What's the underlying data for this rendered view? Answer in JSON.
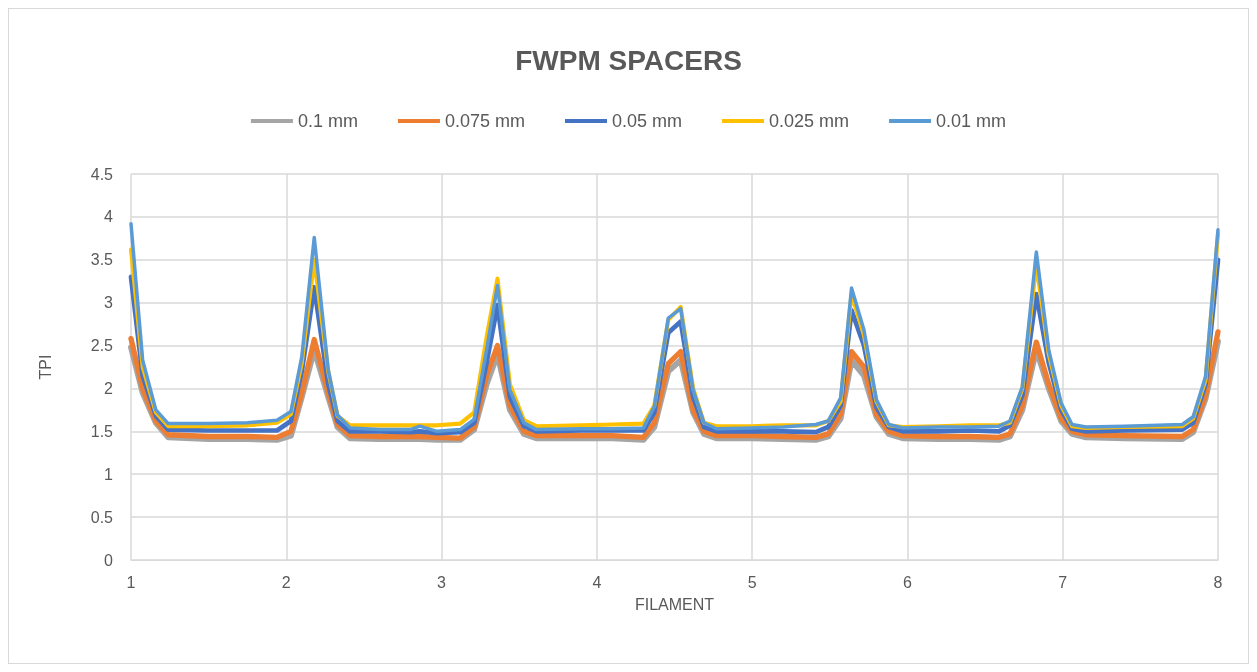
{
  "chart_data": {
    "type": "line",
    "title": "FWPM SPACERS",
    "xlabel": "FILAMENT",
    "ylabel": "TPI",
    "x": [
      1,
      1.075,
      1.16,
      1.24,
      1.5,
      1.75,
      1.94,
      2.03,
      2.1,
      2.18,
      2.27,
      2.33,
      2.41,
      2.6,
      2.8,
      2.86,
      2.97,
      3.12,
      3.21,
      3.29,
      3.36,
      3.44,
      3.53,
      3.61,
      3.9,
      4.1,
      4.3,
      4.37,
      4.46,
      4.54,
      4.62,
      4.69,
      4.77,
      5.0,
      5.2,
      5.41,
      5.49,
      5.57,
      5.64,
      5.72,
      5.8,
      5.88,
      5.97,
      6.2,
      6.4,
      6.59,
      6.66,
      6.74,
      6.83,
      6.91,
      6.99,
      7.06,
      7.15,
      7.4,
      7.77,
      7.84,
      7.92,
      8
    ],
    "series": [
      {
        "name": "0.1 mm",
        "color": "#a5a5a5",
        "values": [
          2.48,
          1.95,
          1.6,
          1.43,
          1.41,
          1.41,
          1.4,
          1.45,
          1.9,
          2.45,
          1.9,
          1.55,
          1.42,
          1.41,
          1.41,
          1.41,
          1.4,
          1.4,
          1.52,
          2.05,
          2.4,
          1.75,
          1.47,
          1.42,
          1.42,
          1.42,
          1.4,
          1.55,
          2.2,
          2.33,
          1.72,
          1.47,
          1.42,
          1.42,
          1.41,
          1.4,
          1.44,
          1.65,
          2.33,
          2.15,
          1.67,
          1.47,
          1.42,
          1.41,
          1.41,
          1.4,
          1.44,
          1.75,
          2.45,
          2.0,
          1.62,
          1.47,
          1.43,
          1.42,
          1.41,
          1.49,
          1.88,
          2.55
        ]
      },
      {
        "name": "0.075 mm",
        "color": "#ed7d31",
        "values": [
          2.58,
          2.0,
          1.62,
          1.46,
          1.44,
          1.44,
          1.43,
          1.5,
          1.95,
          2.57,
          1.95,
          1.58,
          1.45,
          1.44,
          1.44,
          1.44,
          1.43,
          1.42,
          1.55,
          2.15,
          2.5,
          1.8,
          1.5,
          1.45,
          1.45,
          1.45,
          1.43,
          1.6,
          2.29,
          2.43,
          1.75,
          1.5,
          1.45,
          1.45,
          1.44,
          1.43,
          1.47,
          1.7,
          2.43,
          2.25,
          1.7,
          1.5,
          1.45,
          1.44,
          1.44,
          1.43,
          1.47,
          1.8,
          2.54,
          2.05,
          1.65,
          1.5,
          1.46,
          1.45,
          1.44,
          1.52,
          1.92,
          2.66
        ]
      },
      {
        "name": "0.05 mm",
        "color": "#4472c4",
        "values": [
          3.3,
          2.15,
          1.68,
          1.52,
          1.51,
          1.51,
          1.51,
          1.62,
          2.2,
          3.18,
          2.05,
          1.62,
          1.5,
          1.5,
          1.49,
          1.5,
          1.48,
          1.49,
          1.6,
          2.3,
          2.97,
          1.9,
          1.56,
          1.5,
          1.51,
          1.51,
          1.51,
          1.72,
          2.65,
          2.78,
          1.9,
          1.55,
          1.5,
          1.5,
          1.5,
          1.49,
          1.55,
          1.8,
          2.91,
          2.5,
          1.78,
          1.55,
          1.5,
          1.5,
          1.51,
          1.5,
          1.57,
          1.92,
          3.1,
          2.3,
          1.75,
          1.53,
          1.5,
          1.51,
          1.52,
          1.6,
          2.05,
          3.5
        ]
      },
      {
        "name": "0.025 mm",
        "color": "#ffc000",
        "values": [
          3.62,
          2.25,
          1.72,
          1.56,
          1.56,
          1.57,
          1.6,
          1.7,
          2.3,
          3.5,
          2.2,
          1.68,
          1.57,
          1.57,
          1.57,
          1.57,
          1.57,
          1.59,
          1.72,
          2.6,
          3.28,
          2.05,
          1.63,
          1.56,
          1.57,
          1.58,
          1.59,
          1.8,
          2.8,
          2.95,
          2.0,
          1.6,
          1.56,
          1.56,
          1.57,
          1.57,
          1.62,
          1.85,
          3.1,
          2.62,
          1.85,
          1.57,
          1.55,
          1.56,
          1.57,
          1.57,
          1.6,
          2.0,
          3.45,
          2.4,
          1.8,
          1.56,
          1.54,
          1.55,
          1.56,
          1.65,
          2.1,
          3.8
        ]
      },
      {
        "name": "0.01 mm",
        "color": "#5b9bd5",
        "values": [
          3.92,
          2.33,
          1.75,
          1.59,
          1.59,
          1.6,
          1.63,
          1.73,
          2.37,
          3.76,
          2.22,
          1.69,
          1.54,
          1.52,
          1.52,
          1.56,
          1.5,
          1.52,
          1.64,
          2.45,
          3.2,
          1.98,
          1.6,
          1.52,
          1.53,
          1.53,
          1.54,
          1.79,
          2.82,
          2.93,
          1.98,
          1.6,
          1.53,
          1.54,
          1.55,
          1.58,
          1.62,
          1.89,
          3.17,
          2.68,
          1.87,
          1.58,
          1.54,
          1.55,
          1.55,
          1.56,
          1.62,
          2.02,
          3.59,
          2.45,
          1.83,
          1.58,
          1.55,
          1.56,
          1.58,
          1.67,
          2.14,
          3.85
        ]
      }
    ],
    "xlim": [
      1,
      8
    ],
    "xticks": [
      1,
      2,
      3,
      4,
      5,
      6,
      7,
      8
    ],
    "ylim": [
      0,
      4.5
    ],
    "yticks": [
      0,
      0.5,
      1,
      1.5,
      2,
      2.5,
      3,
      3.5,
      4,
      4.5
    ],
    "grid": true,
    "legend": "top",
    "marker": "none",
    "line_style": "solid"
  }
}
